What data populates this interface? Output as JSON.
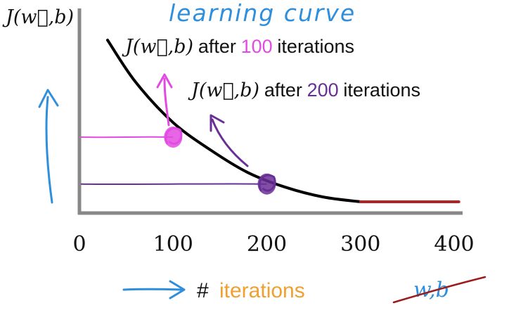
{
  "chart_data": {
    "type": "line",
    "title": "learning curve",
    "ylabel": "J(w⃗,b)",
    "xlabel": {
      "hash": "#",
      "word": "iterations"
    },
    "crossed_out": "w,b",
    "x": [
      30,
      60,
      100,
      140,
      180,
      220,
      260,
      300
    ],
    "series": [
      {
        "name": "J(w⃗,b)",
        "values": [
          100.0,
          74.0,
          49.0,
          32.0,
          18.0,
          9.0,
          3.0,
          0.0
        ]
      }
    ],
    "flat_segment": {
      "x": [
        300,
        405
      ],
      "value": 0
    },
    "xticks": [
      "0",
      "100",
      "200",
      "300",
      "400"
    ],
    "xtick_values": [
      0,
      100,
      200,
      300,
      400
    ],
    "xlim": [
      0,
      410
    ],
    "ylim": [
      -10,
      105
    ],
    "annotations": [
      {
        "x": 100,
        "value": 40,
        "prefix": "J(w⃗,b)",
        "text_before": "after",
        "number": "100",
        "text_after": "iterations",
        "color": "#e24be2"
      },
      {
        "x": 200,
        "value": 11,
        "prefix": "J(w⃗,b)",
        "text_before": "after",
        "number": "200",
        "text_after": "iterations",
        "color": "#6a2f96"
      }
    ],
    "colors": {
      "curve": "#000000",
      "flat": "#b22222",
      "axis": "#888888",
      "title": "#2f8fdc",
      "xlabel_word": "#f0a030",
      "arrows": "#2f8fdc",
      "crossed": "#2f8fdc",
      "strike": "#9b1c1c"
    },
    "grid": false,
    "legend": "none"
  }
}
